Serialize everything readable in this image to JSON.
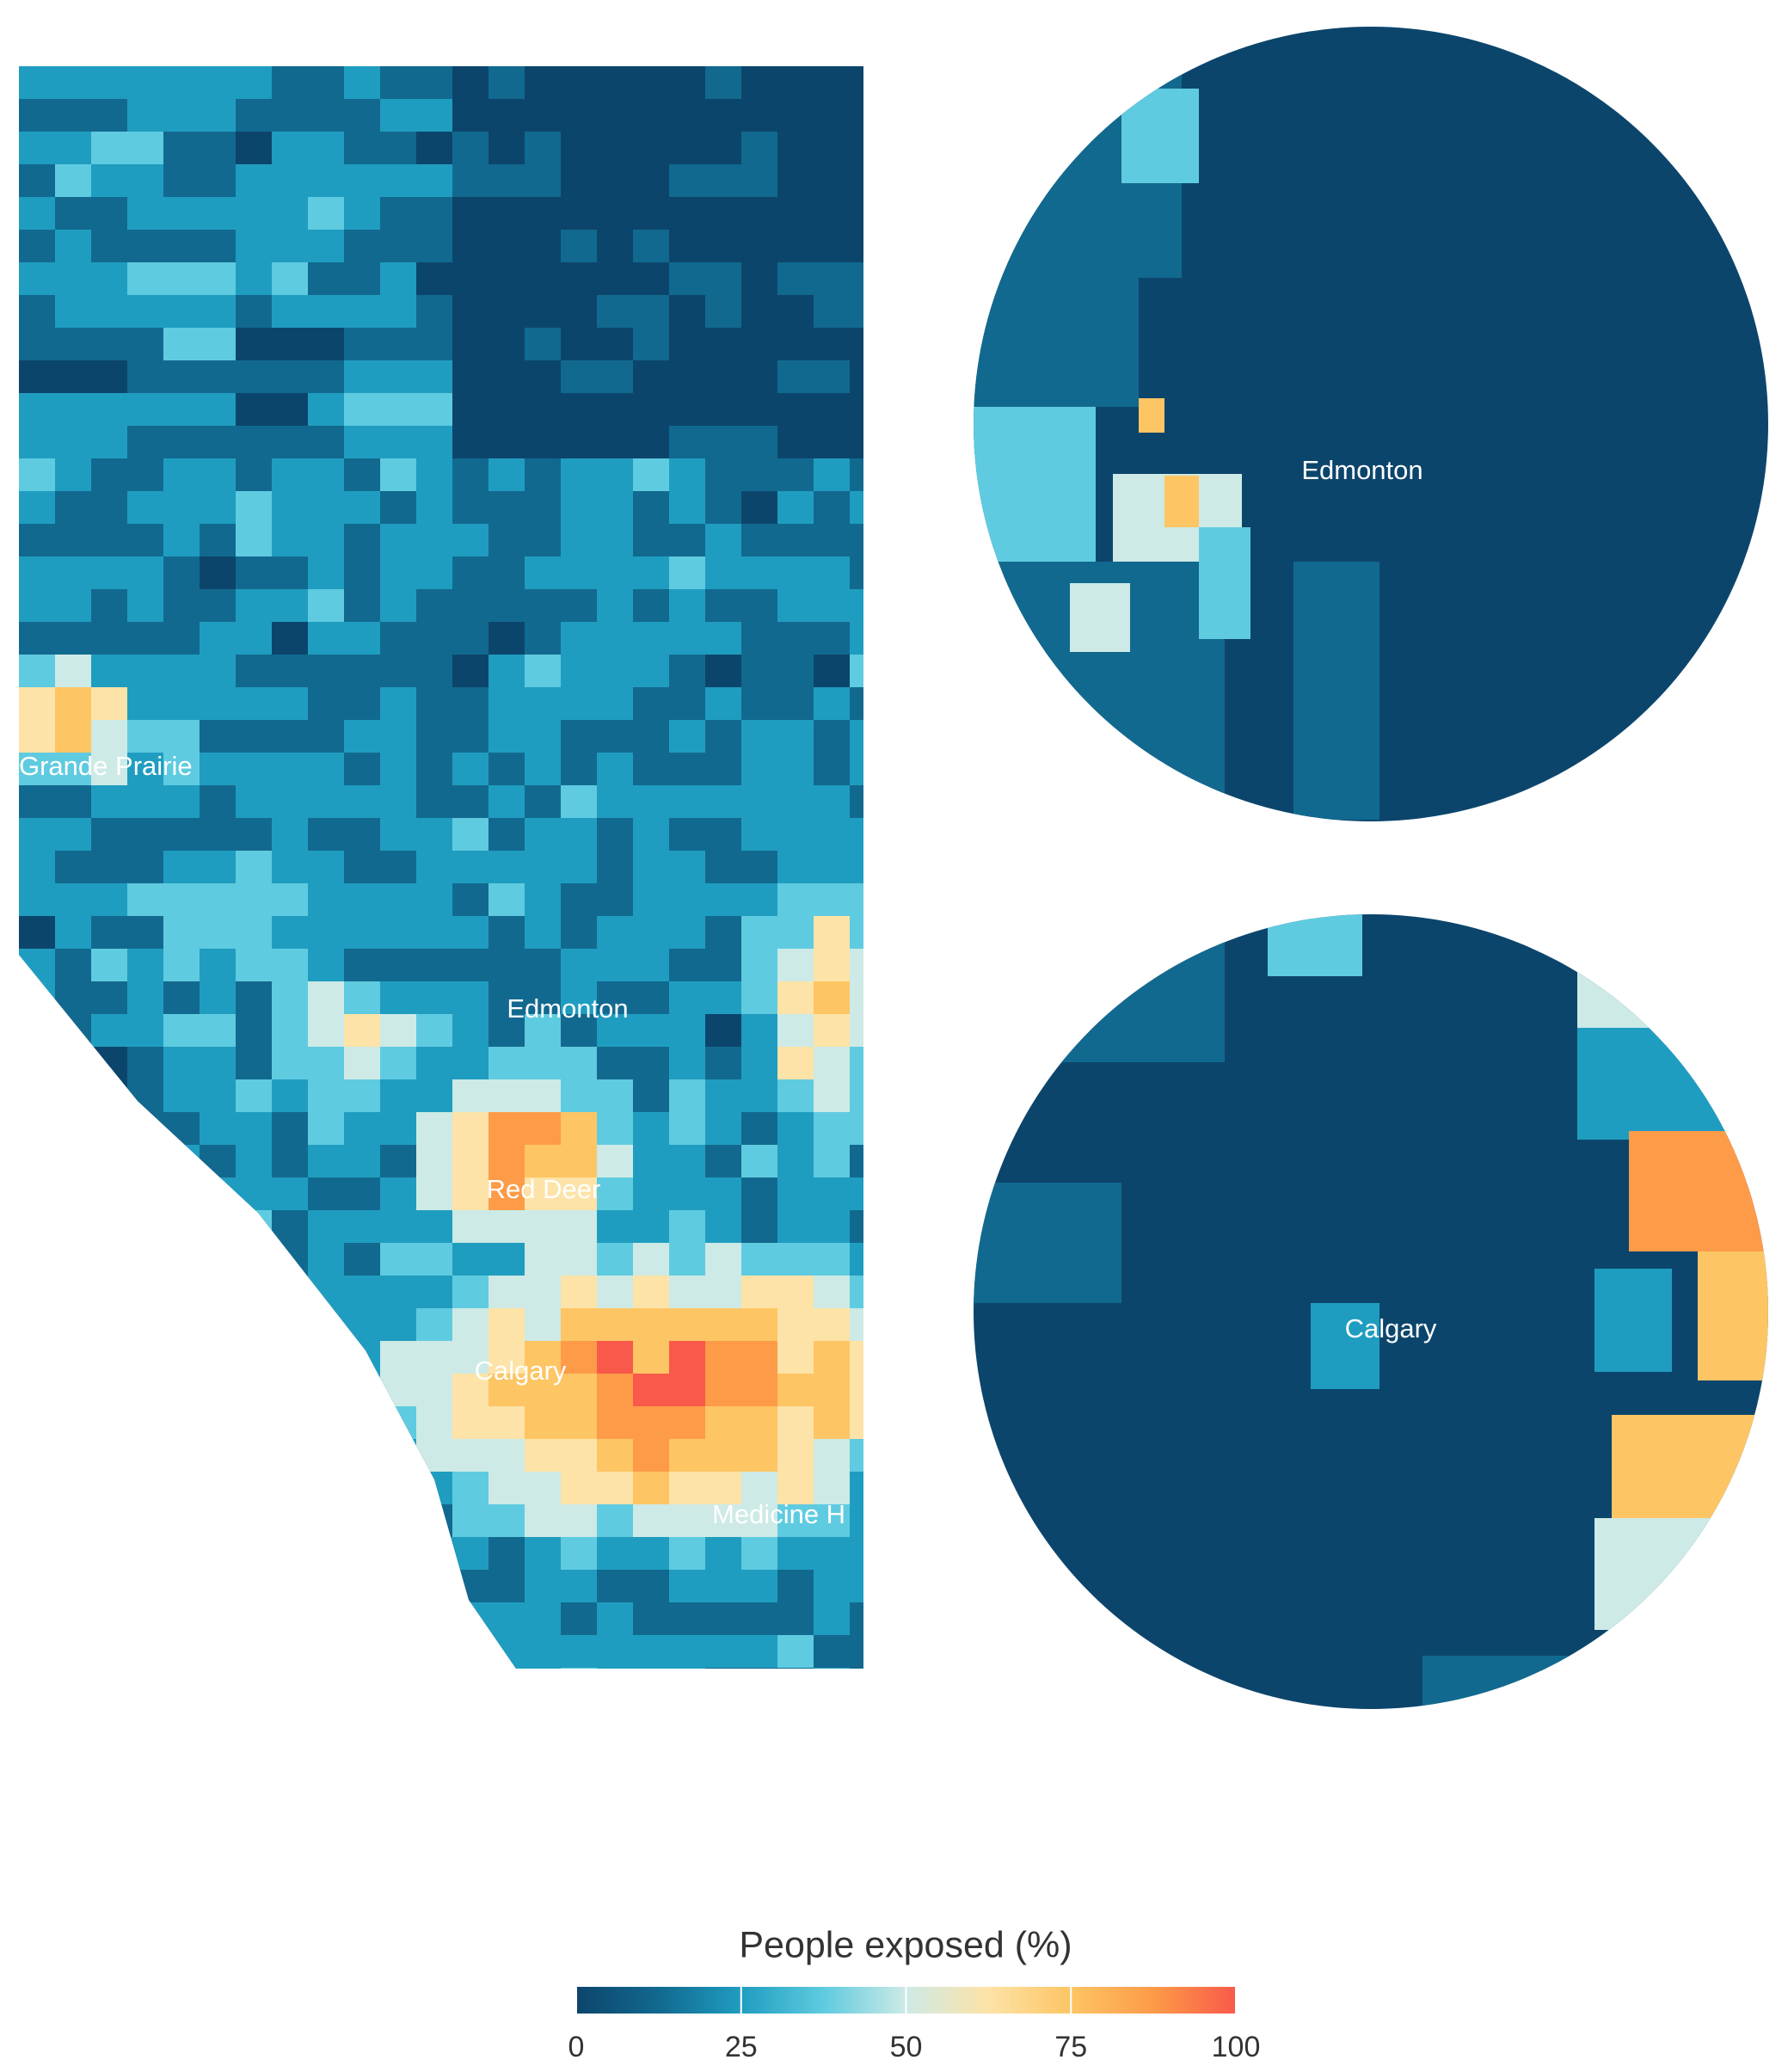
{
  "main_map": {
    "labels": [
      "Grande Prairie",
      "Edmonton",
      "Red Deer",
      "Calgary",
      "Medicine H"
    ]
  },
  "insets": [
    {
      "label": "Edmonton"
    },
    {
      "label": "Calgary"
    }
  ],
  "legend": {
    "title": "People exposed (%)",
    "ticks": [
      0,
      25,
      50,
      75,
      100
    ],
    "lim": [
      0,
      100
    ],
    "colors": [
      "#0c456c",
      "#12698f",
      "#1f9dc0",
      "#5fcbe0",
      "#cdeae6",
      "#fde3a7",
      "#fdc564",
      "#fd9b48",
      "#f9594a"
    ]
  }
}
